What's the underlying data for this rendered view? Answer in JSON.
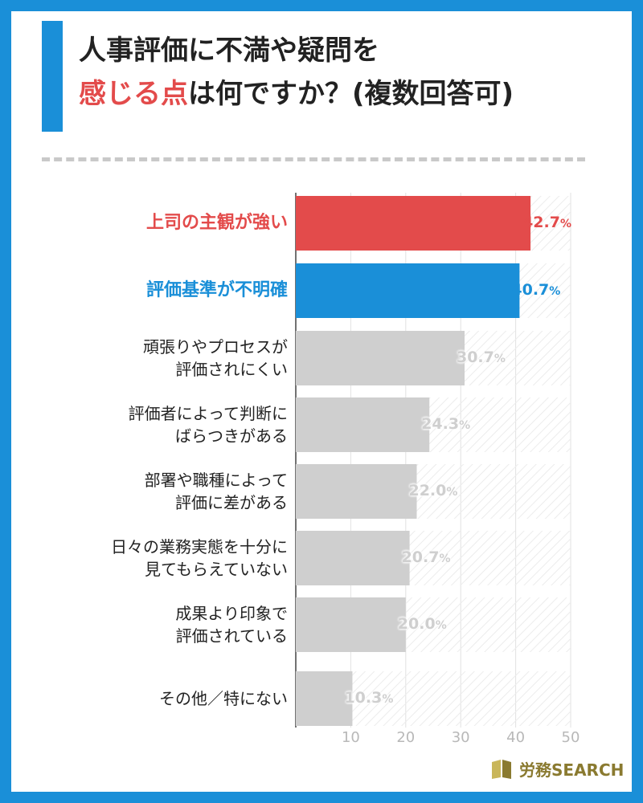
{
  "header": {
    "title_line1": "人事評価に不満や疑問を",
    "title_line2_accent": "感じる点",
    "title_line2_rest": "は何ですか？(複数回答可)"
  },
  "chart_data": {
    "type": "bar",
    "orientation": "horizontal",
    "categories": [
      "上司の主観が強い",
      "評価基準が不明確",
      "頑張りやプロセスが\n評価されにくい",
      "評価者によって判断に\nばらつきがある",
      "部署や職種によって\n評価に差がある",
      "日々の業務実態を十分に\n見てもらえていない",
      "成果より印象で\n評価されている",
      "その他／特にない"
    ],
    "values": [
      42.7,
      40.7,
      30.7,
      24.3,
      22.0,
      20.7,
      20.0,
      10.3
    ],
    "value_labels": [
      "42.7",
      "40.7",
      "30.7",
      "24.3",
      "22.0",
      "20.7",
      "20.0",
      "10.3"
    ],
    "unit": "%",
    "bar_colors": [
      "#e34b4b",
      "#1a8fd8",
      "#cfcfcf",
      "#cfcfcf",
      "#cfcfcf",
      "#cfcfcf",
      "#cfcfcf",
      "#cfcfcf"
    ],
    "label_colors": [
      "#e34b4b",
      "#1a8fd8",
      "#222222",
      "#222222",
      "#222222",
      "#222222",
      "#222222",
      "#222222"
    ],
    "x_ticks": [
      "10",
      "20",
      "30",
      "40",
      "50"
    ],
    "xlim": [
      0,
      50
    ],
    "grid": true
  },
  "logo": {
    "text": "労務SEARCH"
  }
}
